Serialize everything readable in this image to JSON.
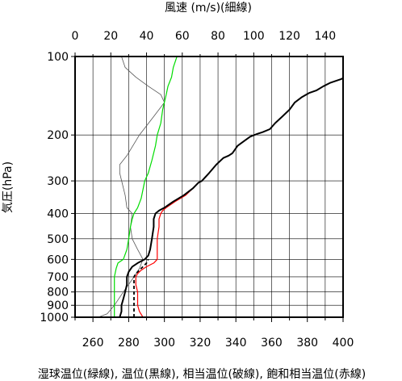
{
  "chart_data": {
    "type": "line",
    "top_axis_label": "風速 (m/s)(細線)",
    "left_axis_label": "気圧(hPa)",
    "bottom_axis_label": "湿球温位(緑線), 温位(黒線), 相当温位(破線), 飽和相当温位(赤線)",
    "pressure_scale": "log",
    "ylim": [
      1000,
      100
    ],
    "pressure_ticks": [
      100,
      200,
      300,
      400,
      500,
      600,
      700,
      800,
      900,
      1000
    ],
    "bottom_xlim": [
      250,
      400
    ],
    "bottom_ticks": [
      260,
      280,
      300,
      320,
      340,
      360,
      380,
      400
    ],
    "top_xlim": [
      0,
      150
    ],
    "top_ticks": [
      0,
      20,
      40,
      60,
      80,
      100,
      120,
      140
    ],
    "grid": true,
    "colors": {
      "wet_bulb": "#00dd00",
      "potential": "#000000",
      "equivalent": "#000000",
      "saturated": "#ff0000",
      "wind": "#555555"
    },
    "series": [
      {
        "key": "wind",
        "axis": "top",
        "points": [
          [
            13,
            1000
          ],
          [
            18,
            970
          ],
          [
            22,
            900
          ],
          [
            27,
            800
          ],
          [
            33,
            700
          ],
          [
            36,
            650
          ],
          [
            38,
            600
          ],
          [
            35,
            550
          ],
          [
            32,
            500
          ],
          [
            31,
            450
          ],
          [
            32,
            400
          ],
          [
            29,
            380
          ],
          [
            28,
            340
          ],
          [
            25,
            280
          ],
          [
            25,
            260
          ],
          [
            29,
            240
          ],
          [
            36,
            200
          ],
          [
            44,
            170
          ],
          [
            50,
            150
          ],
          [
            48,
            140
          ],
          [
            41,
            130
          ],
          [
            34,
            120
          ],
          [
            28,
            110
          ],
          [
            26,
            100
          ]
        ]
      },
      {
        "key": "wet_bulb",
        "axis": "bottom",
        "points": [
          [
            272,
            1000
          ],
          [
            272,
            900
          ],
          [
            272,
            800
          ],
          [
            272,
            700
          ],
          [
            273,
            650
          ],
          [
            274,
            620
          ],
          [
            277,
            600
          ],
          [
            279,
            550
          ],
          [
            280,
            500
          ],
          [
            281,
            450
          ],
          [
            282,
            420
          ],
          [
            283,
            400
          ],
          [
            285,
            380
          ],
          [
            287,
            350
          ],
          [
            289,
            300
          ],
          [
            291,
            280
          ],
          [
            293,
            250
          ],
          [
            295,
            220
          ],
          [
            296,
            200
          ],
          [
            298,
            180
          ],
          [
            299,
            160
          ],
          [
            301,
            140
          ],
          [
            302,
            130
          ],
          [
            304,
            120
          ],
          [
            305,
            110
          ],
          [
            307,
            100
          ]
        ]
      },
      {
        "key": "potential",
        "axis": "bottom",
        "points": [
          [
            275,
            1000
          ],
          [
            276,
            950
          ],
          [
            276,
            900
          ],
          [
            277,
            850
          ],
          [
            278,
            800
          ],
          [
            279,
            750
          ],
          [
            279,
            700
          ],
          [
            280,
            670
          ],
          [
            282,
            640
          ],
          [
            285,
            620
          ],
          [
            289,
            600
          ],
          [
            291,
            580
          ],
          [
            292,
            550
          ],
          [
            293,
            500
          ],
          [
            294,
            450
          ],
          [
            294,
            420
          ],
          [
            295,
            400
          ],
          [
            297,
            390
          ],
          [
            300,
            380
          ],
          [
            305,
            360
          ],
          [
            311,
            340
          ],
          [
            316,
            320
          ],
          [
            319,
            305
          ],
          [
            321,
            300
          ],
          [
            325,
            280
          ],
          [
            329,
            260
          ],
          [
            333,
            245
          ],
          [
            336,
            240
          ],
          [
            338,
            235
          ],
          [
            341,
            220
          ],
          [
            345,
            210
          ],
          [
            348,
            203
          ],
          [
            352,
            198
          ],
          [
            355,
            195
          ],
          [
            359,
            190
          ],
          [
            362,
            180
          ],
          [
            366,
            170
          ],
          [
            370,
            160
          ],
          [
            373,
            150
          ],
          [
            377,
            143
          ],
          [
            381,
            138
          ],
          [
            385,
            135
          ],
          [
            389,
            130
          ],
          [
            393,
            126
          ],
          [
            396,
            124
          ],
          [
            399,
            122
          ],
          [
            400,
            121
          ]
        ]
      },
      {
        "key": "equivalent",
        "axis": "bottom",
        "points": [
          [
            283,
            1000
          ],
          [
            283,
            950
          ],
          [
            283,
            900
          ],
          [
            283,
            850
          ],
          [
            283,
            800
          ],
          [
            283,
            750
          ],
          [
            283,
            700
          ],
          [
            284,
            680
          ],
          [
            286,
            660
          ],
          [
            288,
            640
          ],
          [
            290,
            620
          ],
          [
            291,
            600
          ]
        ]
      },
      {
        "key": "saturated",
        "axis": "bottom",
        "points": [
          [
            288,
            1000
          ],
          [
            286,
            950
          ],
          [
            285,
            900
          ],
          [
            285,
            850
          ],
          [
            285,
            800
          ],
          [
            284,
            750
          ],
          [
            284,
            700
          ],
          [
            285,
            680
          ],
          [
            287,
            660
          ],
          [
            290,
            640
          ],
          [
            294,
            620
          ],
          [
            296,
            600
          ],
          [
            296,
            580
          ],
          [
            296,
            550
          ],
          [
            296,
            500
          ],
          [
            297,
            450
          ],
          [
            297,
            420
          ],
          [
            298,
            400
          ],
          [
            299,
            390
          ],
          [
            301,
            380
          ],
          [
            306,
            360
          ],
          [
            312,
            340
          ],
          [
            316,
            320
          ],
          [
            319,
            305
          ],
          [
            321,
            300
          ],
          [
            325,
            280
          ],
          [
            329,
            260
          ],
          [
            333,
            245
          ],
          [
            336,
            240
          ],
          [
            338,
            235
          ],
          [
            341,
            220
          ],
          [
            345,
            210
          ],
          [
            348,
            203
          ],
          [
            352,
            198
          ],
          [
            355,
            195
          ],
          [
            359,
            190
          ],
          [
            362,
            180
          ],
          [
            366,
            170
          ],
          [
            370,
            160
          ],
          [
            373,
            150
          ],
          [
            377,
            143
          ],
          [
            381,
            138
          ],
          [
            385,
            135
          ],
          [
            389,
            130
          ],
          [
            393,
            126
          ],
          [
            396,
            124
          ],
          [
            399,
            122
          ],
          [
            400,
            121
          ]
        ]
      }
    ]
  }
}
